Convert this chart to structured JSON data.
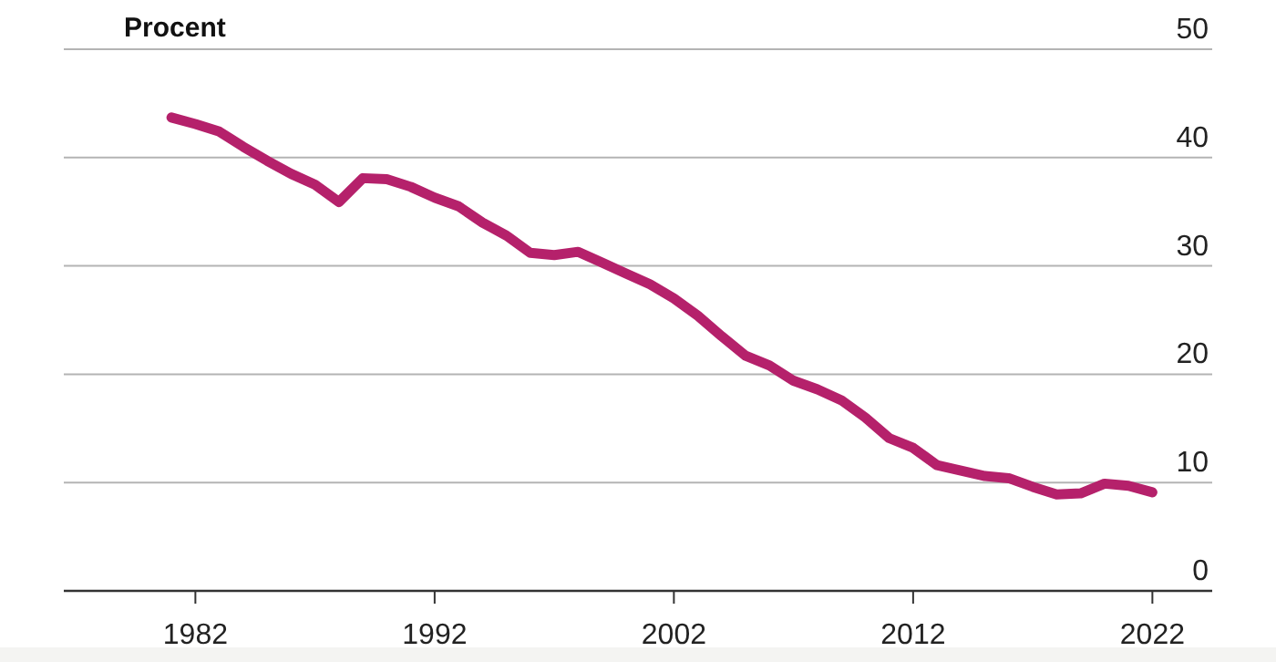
{
  "chart_data": {
    "type": "line",
    "ylabel": "Procent",
    "x": [
      1981,
      1982,
      1983,
      1984,
      1985,
      1986,
      1987,
      1988,
      1989,
      1990,
      1991,
      1992,
      1993,
      1994,
      1995,
      1996,
      1997,
      1998,
      1999,
      2000,
      2001,
      2002,
      2003,
      2004,
      2005,
      2006,
      2007,
      2008,
      2009,
      2010,
      2011,
      2012,
      2013,
      2014,
      2015,
      2016,
      2017,
      2018,
      2019,
      2020,
      2021,
      2022
    ],
    "series": [
      {
        "color": "#b5216b",
        "values": [
          43.7,
          43.1,
          42.4,
          41.0,
          39.7,
          38.5,
          37.5,
          35.9,
          38.1,
          38.0,
          37.3,
          36.3,
          35.5,
          34.0,
          32.8,
          31.2,
          31.0,
          31.3,
          30.3,
          29.3,
          28.3,
          27.0,
          25.4,
          23.5,
          21.7,
          20.8,
          19.4,
          18.6,
          17.6,
          16.0,
          14.1,
          13.2,
          11.6,
          11.1,
          10.6,
          10.4,
          9.6,
          8.9,
          9.0,
          9.9,
          9.7,
          9.1
        ]
      }
    ],
    "xlim": [
      1976.5,
      2024.5
    ],
    "xticks": [
      1982,
      1992,
      2002,
      2012,
      2022
    ],
    "ylim": [
      0,
      50
    ],
    "yticks": [
      0,
      10,
      20,
      30,
      40,
      50
    ],
    "grid": "y",
    "marker": "none",
    "line_style": "solid"
  }
}
